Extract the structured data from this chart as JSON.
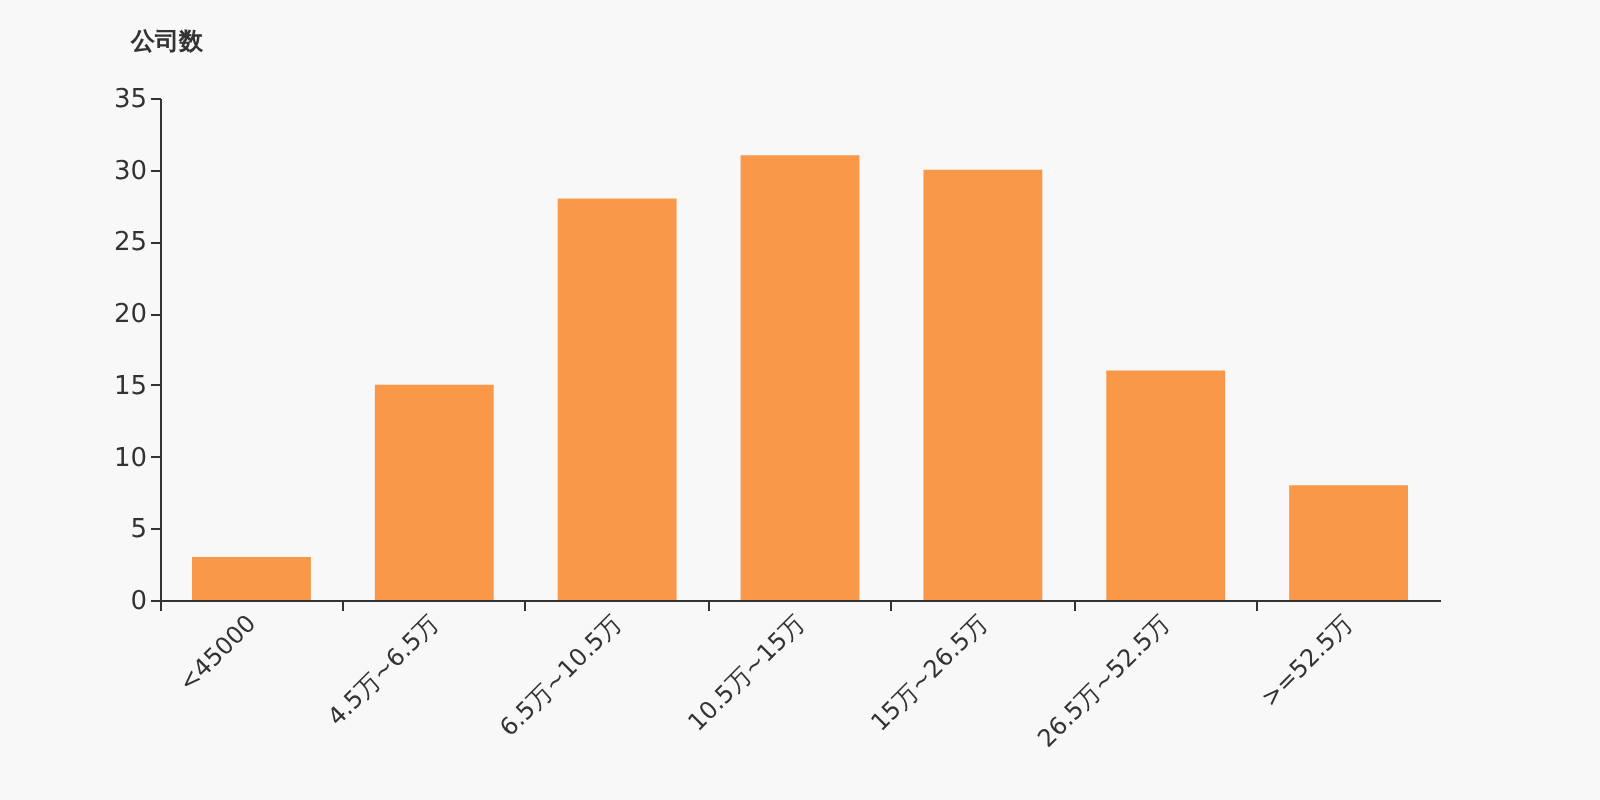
{
  "chart_data": {
    "type": "bar",
    "ylabel": "公司数",
    "categories": [
      "<45000",
      "4.5万~6.5万",
      "6.5万~10.5万",
      "10.5万~15万",
      "15万~26.5万",
      "26.5万~52.5万",
      ">=52.5万"
    ],
    "values": [
      3,
      15,
      28,
      31,
      30,
      16,
      8
    ],
    "color": "#f89848",
    "ylim": [
      0,
      35
    ],
    "yticks": [
      0,
      5,
      10,
      15,
      20,
      25,
      30,
      35
    ],
    "grid": false
  }
}
